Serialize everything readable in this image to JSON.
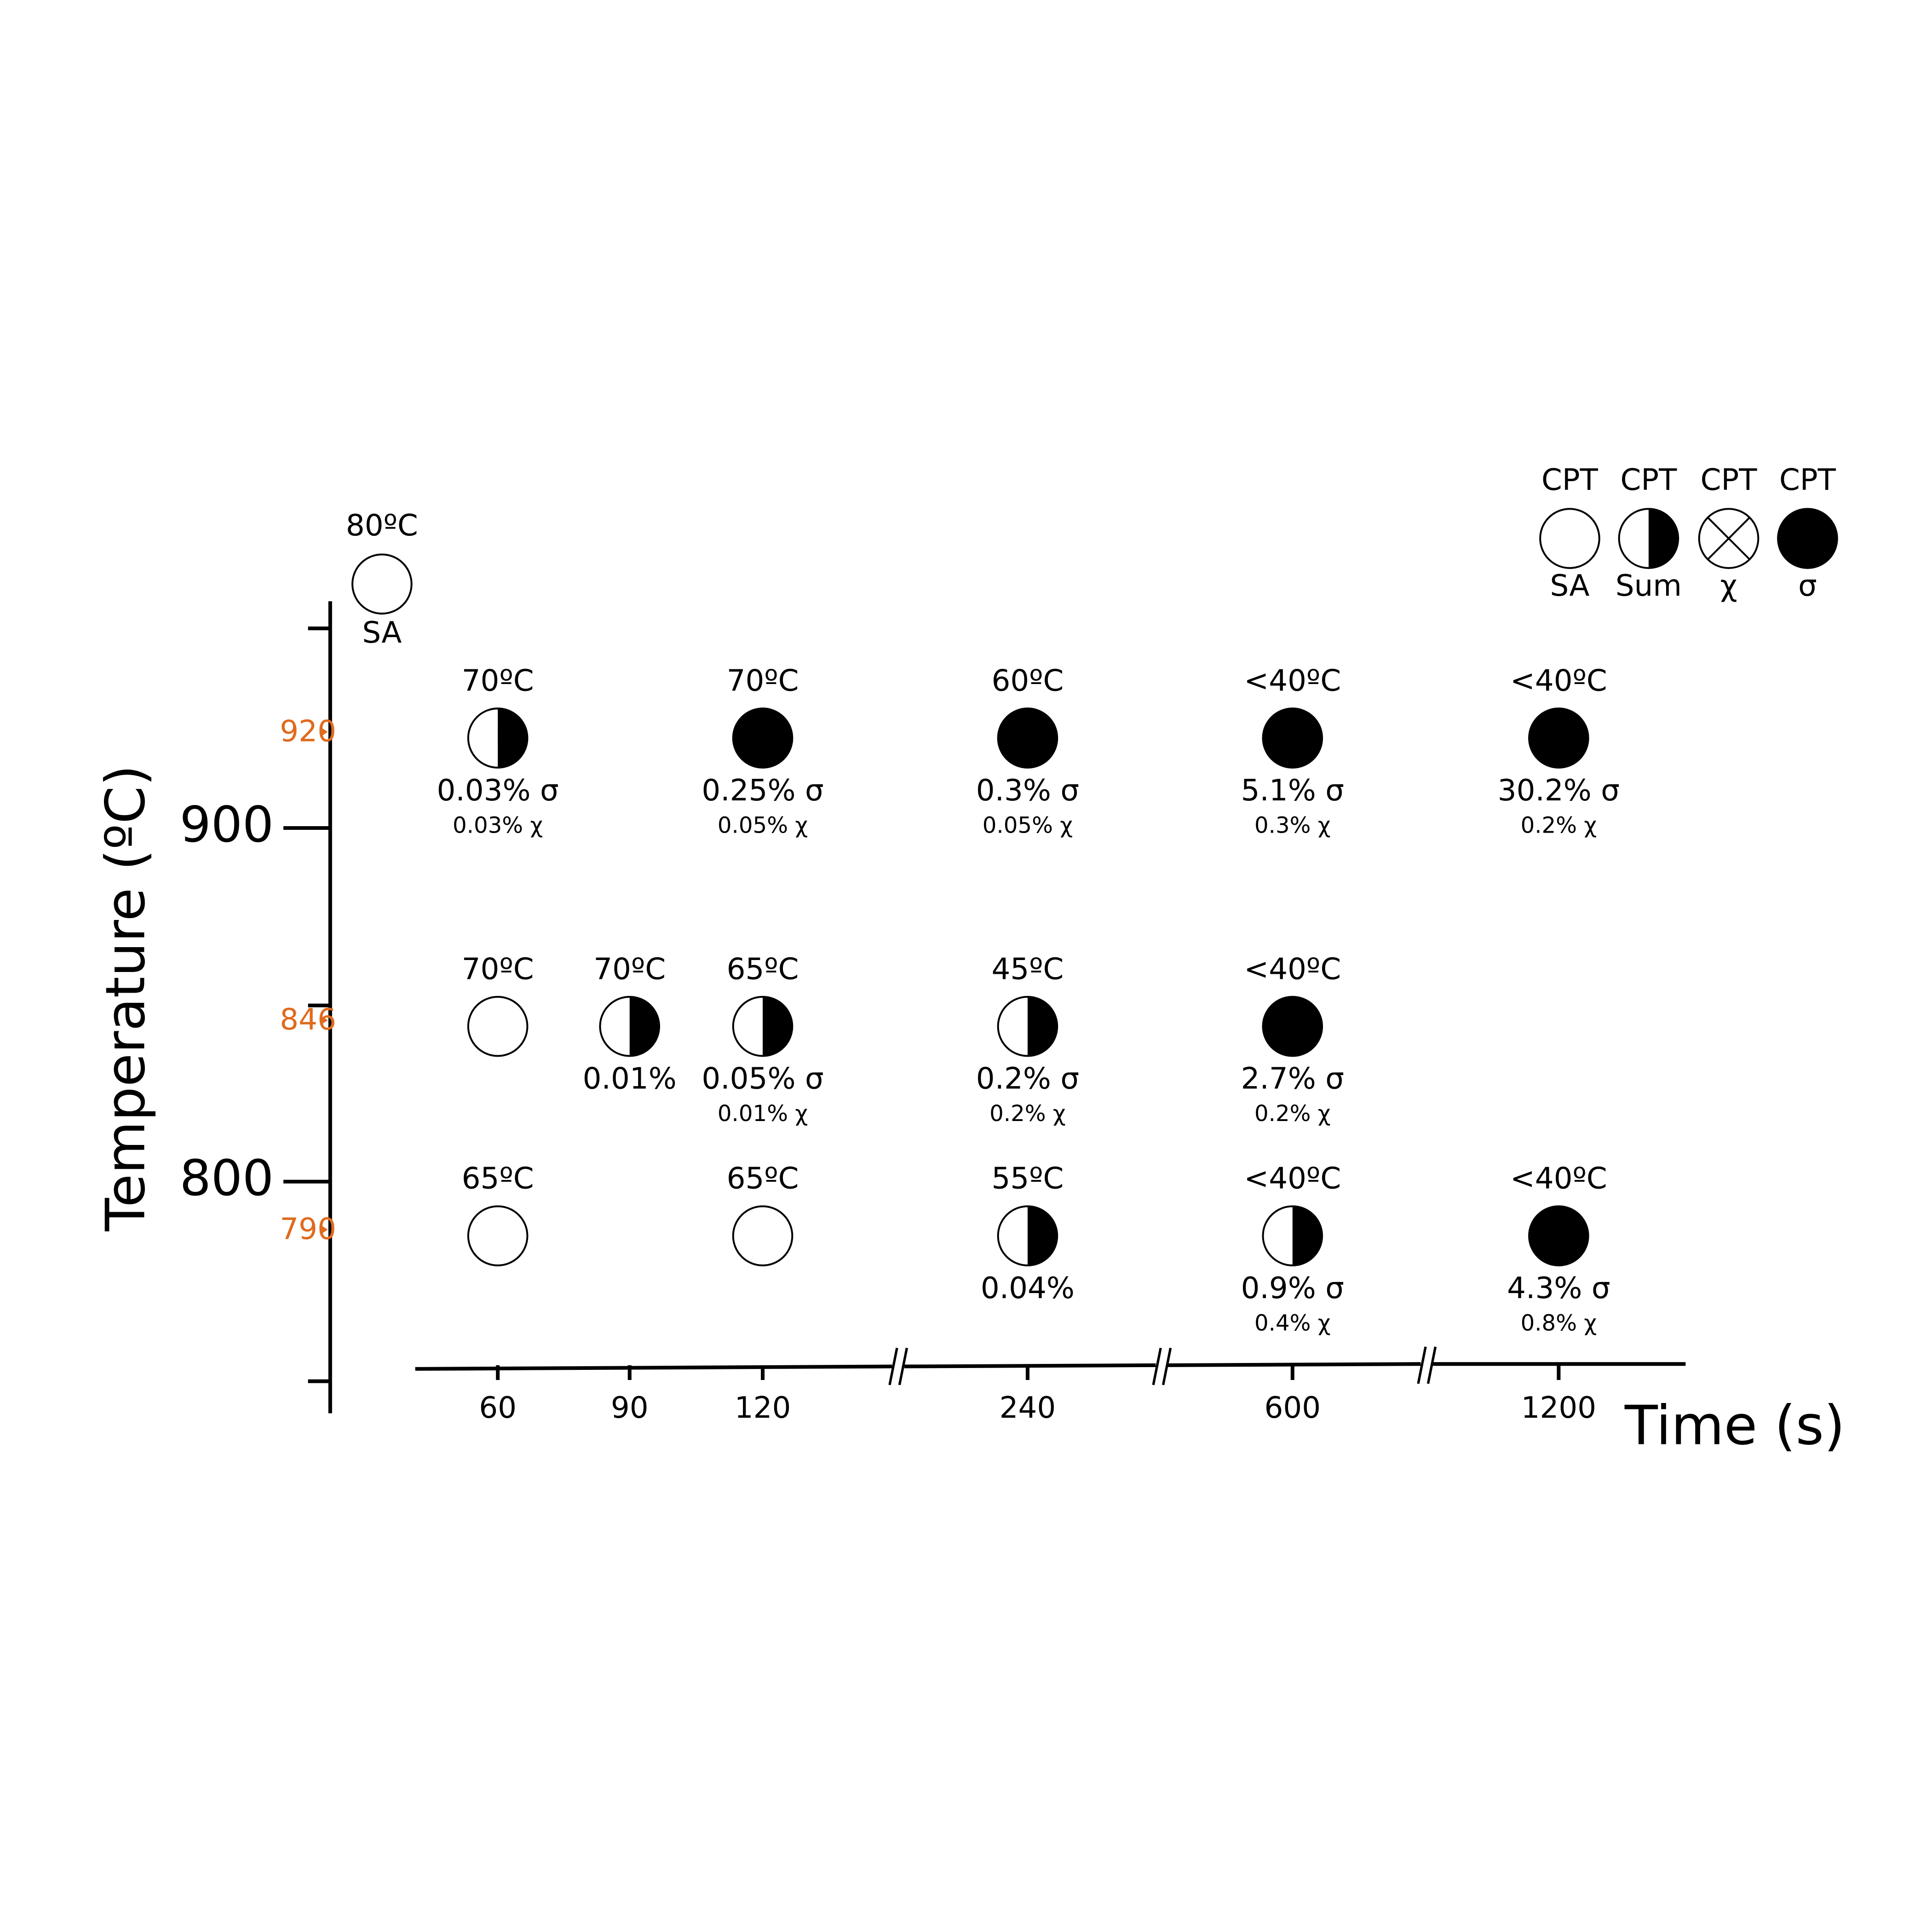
{
  "axes": {
    "y_label": "Temperature (ºC)",
    "y_ticks": [
      "900",
      "800"
    ],
    "y_markers": [
      "920",
      "846",
      "790"
    ],
    "x_label": "Time (s)",
    "x_ticks": [
      "60",
      "90",
      "120",
      "240",
      "600",
      "1200"
    ]
  },
  "legend": [
    {
      "top": "CPT",
      "bottom": "SA",
      "state": "open"
    },
    {
      "top": "CPT",
      "bottom": "Sum",
      "state": "half"
    },
    {
      "top": "CPT",
      "bottom": "χ",
      "state": "cross"
    },
    {
      "top": "CPT",
      "bottom": "σ",
      "state": "filled"
    }
  ],
  "initial": {
    "top": "80ºC",
    "bottom": "SA",
    "state": "open"
  },
  "rows": [
    {
      "cells": [
        {
          "top": "70ºC",
          "state": "half",
          "lines": [
            "0.03% σ",
            "0.03% χ"
          ]
        },
        null,
        {
          "top": "70ºC",
          "state": "filled",
          "lines": [
            "0.25% σ",
            "0.05% χ"
          ]
        },
        {
          "top": "60ºC",
          "state": "filled",
          "lines": [
            "0.3% σ",
            "0.05% χ"
          ]
        },
        {
          "top": "<40ºC",
          "state": "filled",
          "lines": [
            "5.1% σ",
            "0.3% χ"
          ]
        },
        {
          "top": "<40ºC",
          "state": "filled",
          "lines": [
            "30.2% σ",
            "0.2% χ"
          ]
        }
      ]
    },
    {
      "cells": [
        {
          "top": "70ºC",
          "state": "open",
          "lines": []
        },
        {
          "top": "70ºC",
          "state": "half",
          "lines": [
            "0.01%"
          ]
        },
        {
          "top": "65ºC",
          "state": "half",
          "lines": [
            "0.05% σ",
            "0.01% χ"
          ]
        },
        {
          "top": "45ºC",
          "state": "half",
          "lines": [
            "0.2% σ",
            "0.2% χ"
          ]
        },
        {
          "top": "<40ºC",
          "state": "filled",
          "lines": [
            "2.7% σ",
            "0.2% χ"
          ]
        },
        null
      ]
    },
    {
      "cells": [
        {
          "top": "65ºC",
          "state": "open",
          "lines": []
        },
        null,
        {
          "top": "65ºC",
          "state": "open",
          "lines": []
        },
        {
          "top": "55ºC",
          "state": "half",
          "lines": [
            "0.04%"
          ]
        },
        {
          "top": "<40ºC",
          "state": "half",
          "lines": [
            "0.9% σ",
            "0.4% χ"
          ]
        },
        {
          "top": "<40ºC",
          "state": "filled",
          "lines": [
            "4.3% σ",
            "0.8% χ"
          ]
        }
      ]
    }
  ]
}
